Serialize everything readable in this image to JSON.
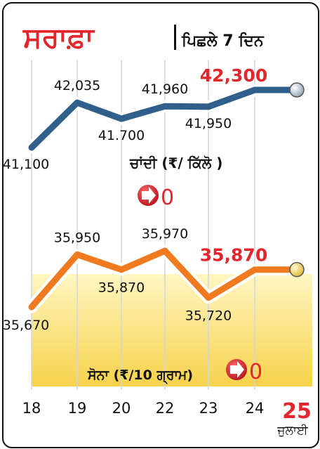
{
  "header": {
    "title": "ਸਰਾਫ਼ਾ",
    "subtitle": "ਪਿਛਲੇ 7 ਦਿਨ"
  },
  "month_label": "ਜੁਲਾਈ",
  "colors": {
    "title_red": "#e3262b",
    "silver_line": "#2f5f8a",
    "gold_line": "#f07a1f",
    "highlight_red": "#e3262b",
    "grid": "#cfd6dc",
    "gold_fill_top": "#fff6c2",
    "gold_fill_bottom": "#f6d24b"
  },
  "chart_data": [
    {
      "type": "line",
      "name": "silver",
      "label": "ਚਾਂਦੀ (₹/ ਕਿੱਲੋ )",
      "categories": [
        "18",
        "19",
        "20",
        "22",
        "23",
        "24",
        "25"
      ],
      "values": [
        41100,
        42035,
        41700,
        41960,
        41950,
        42300,
        42300
      ],
      "value_labels": [
        "41,100",
        "42,035",
        "41.700",
        "41,960",
        "41,950",
        "42,300",
        ""
      ],
      "change": "0",
      "change_icon": "arrow-right-icon"
    },
    {
      "type": "line",
      "name": "gold",
      "label": "ਸੋਨਾ (₹/10 ਗ੍ਰਾਮ)",
      "categories": [
        "18",
        "19",
        "20",
        "22",
        "23",
        "24",
        "25"
      ],
      "values": [
        35670,
        35950,
        35870,
        35970,
        35720,
        35870,
        35870
      ],
      "value_labels": [
        "35,670",
        "35,950",
        "35,870",
        "35,970",
        "35,720",
        "35,870",
        ""
      ],
      "change": "0",
      "change_icon": "arrow-right-icon"
    }
  ]
}
